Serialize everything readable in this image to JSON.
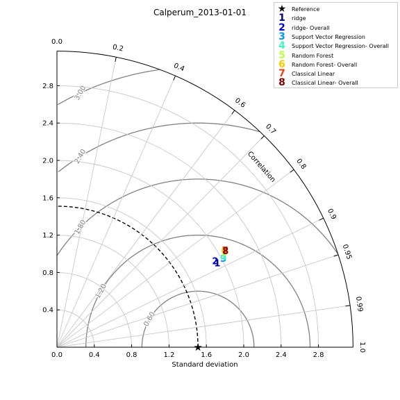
{
  "chart_data": {
    "type": "scatter",
    "subtype": "taylor-diagram",
    "title": "Calperum_2013-01-01",
    "xlabel": "Standard deviation",
    "correlation_label": "Correlation",
    "std_ticks": [
      "0.0",
      "0.4",
      "0.8",
      "1.2",
      "1.6",
      "2.0",
      "2.4",
      "2.8"
    ],
    "std_tick_values": [
      0.0,
      0.4,
      0.8,
      1.2,
      1.6,
      2.0,
      2.4,
      2.8
    ],
    "std_max": 3.17,
    "corr_ticks": [
      "0.0",
      "0.2",
      "0.4",
      "0.6",
      "0.7",
      "0.8",
      "0.9",
      "0.95",
      "0.99",
      "1.0"
    ],
    "corr_tick_values": [
      0.0,
      0.2,
      0.4,
      0.6,
      0.7,
      0.8,
      0.9,
      0.95,
      0.99,
      1.0
    ],
    "rms_contours": [
      0.6,
      1.2,
      1.8,
      2.4,
      3.0
    ],
    "rms_labels": [
      "0.60",
      "1.20",
      "1.80",
      "2.40",
      "3.00"
    ],
    "reference_std": 1.51,
    "points": [
      {
        "marker": "1",
        "std": 1.94,
        "corr": 0.885,
        "color": "#000080"
      },
      {
        "marker": "2",
        "std": 1.93,
        "corr": 0.878,
        "color": "#0000d0"
      },
      {
        "marker": "3",
        "std": 2.02,
        "corr": 0.882,
        "color": "#0096ff"
      },
      {
        "marker": "4",
        "std": 2.03,
        "corr": 0.878,
        "color": "#40f5c0"
      },
      {
        "marker": "5",
        "std": 2.06,
        "corr": 0.87,
        "color": "#b8ff48"
      },
      {
        "marker": "6",
        "std": 2.07,
        "corr": 0.865,
        "color": "#ffc800"
      },
      {
        "marker": "7",
        "std": 2.08,
        "corr": 0.866,
        "color": "#e84010"
      },
      {
        "marker": "8",
        "std": 2.08,
        "corr": 0.868,
        "color": "#800000"
      }
    ]
  },
  "legend": {
    "items": [
      {
        "symbol": "★",
        "label": "Reference",
        "color": "#000000"
      },
      {
        "symbol": "1",
        "label": "ridge",
        "color": "#000080"
      },
      {
        "symbol": "2",
        "label": "ridge- Overall",
        "color": "#0000d0"
      },
      {
        "symbol": "3",
        "label": "Support Vector Regression",
        "color": "#0096ff"
      },
      {
        "symbol": "4",
        "label": "Support Vector Regression- Overall",
        "color": "#40f5c0"
      },
      {
        "symbol": "5",
        "label": "Random Forest",
        "color": "#b8ff48"
      },
      {
        "symbol": "6",
        "label": "Random Forest- Overall",
        "color": "#ffc800"
      },
      {
        "symbol": "7",
        "label": "Classical Linear",
        "color": "#e84010"
      },
      {
        "symbol": "8",
        "label": "Classical Linear- Overall",
        "color": "#800000"
      }
    ]
  }
}
